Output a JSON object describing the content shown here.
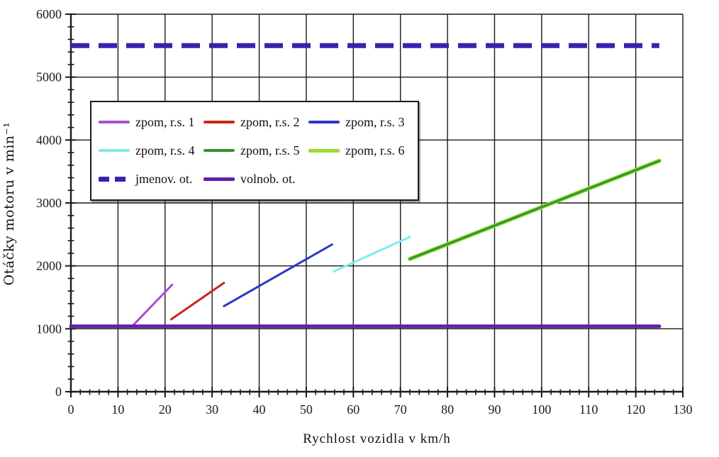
{
  "chart_data": {
    "type": "line",
    "title": "",
    "xlabel": "Rychlost vozidla v km/h",
    "ylabel": "Otáčky motoru v min⁻¹",
    "xlim": [
      0,
      130
    ],
    "ylim": [
      0,
      6000
    ],
    "x_ticks": [
      0,
      10,
      20,
      30,
      40,
      50,
      60,
      70,
      80,
      90,
      100,
      110,
      120,
      130
    ],
    "y_ticks": [
      0,
      1000,
      2000,
      3000,
      4000,
      5000,
      6000
    ],
    "x_minor_step": 2,
    "y_minor_step": 200,
    "grid": "major-both",
    "legend_position": "upper-left-inside",
    "axis_color": "#1a1a1a",
    "series": [
      {
        "name": "zpom, r.s. 1",
        "color": "#A84FD2",
        "style": "solid",
        "width": 3,
        "points": [
          [
            13,
            1040
          ],
          [
            21.5,
            1700
          ]
        ]
      },
      {
        "name": "zpom, r.s. 2",
        "color": "#C52818",
        "style": "solid",
        "width": 3,
        "points": [
          [
            21.3,
            1150
          ],
          [
            32.5,
            1730
          ]
        ]
      },
      {
        "name": "zpom, r.s. 3",
        "color": "#2C35C8",
        "style": "solid",
        "width": 3,
        "points": [
          [
            32.5,
            1360
          ],
          [
            55.5,
            2340
          ]
        ]
      },
      {
        "name": "zpom, r.s. 4",
        "color": "#7DEEE8",
        "style": "solid",
        "width": 3,
        "points": [
          [
            55.8,
            1910
          ],
          [
            72,
            2460
          ]
        ]
      },
      {
        "name": "zpom, r.s. 5",
        "color": "#2E9431",
        "style": "solid",
        "width": 3,
        "points": [
          [
            72,
            2110
          ],
          [
            125,
            3670
          ]
        ]
      },
      {
        "name": "zpom, r.s. 6",
        "color": "#98DC2E",
        "style": "solid",
        "width": 6,
        "points": [
          [
            72,
            2110
          ],
          [
            125,
            3670
          ]
        ]
      },
      {
        "name": "jmenov. ot.",
        "color": "#3A22AE",
        "style": "dashed",
        "width": 7,
        "points": [
          [
            0,
            5500
          ],
          [
            125,
            5500
          ]
        ]
      },
      {
        "name": "volnob. ot.",
        "color": "#6021A8",
        "style": "solid",
        "width": 5,
        "points": [
          [
            0,
            1040
          ],
          [
            125,
            1040
          ]
        ]
      }
    ]
  }
}
